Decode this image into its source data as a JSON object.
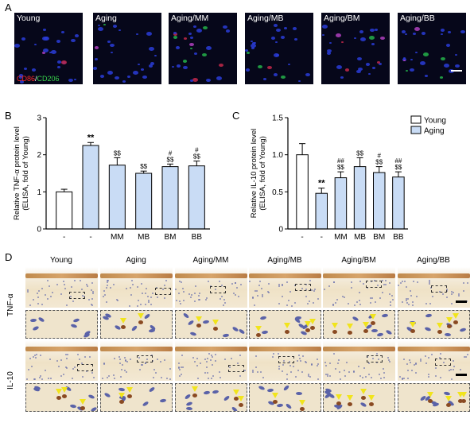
{
  "panel_letters": {
    "a": "A",
    "b": "B",
    "c": "C",
    "d": "D"
  },
  "panel_a": {
    "tiles": [
      "Young",
      "Aging",
      "Aging/MM",
      "Aging/MB",
      "Aging/BM",
      "Aging/BB"
    ],
    "legend_red": "CD86",
    "legend_sep": "/",
    "legend_green": "CD206"
  },
  "chart_data": [
    {
      "type": "bar",
      "ylabel": "Relative TNF-α protein level (ELISA, fold of Young)",
      "categories": [
        "-",
        "-",
        "MM",
        "MB",
        "BM",
        "BB"
      ],
      "values": [
        1.0,
        2.25,
        1.72,
        1.5,
        1.68,
        1.7
      ],
      "errors": [
        0.07,
        0.08,
        0.2,
        0.06,
        0.07,
        0.13
      ],
      "ylim": [
        0,
        3
      ],
      "yticks": [
        0,
        1,
        2,
        3
      ],
      "annotations": [
        [
          "",
          ""
        ],
        [
          "",
          "**"
        ],
        [
          "",
          "$$"
        ],
        [
          "",
          "$$"
        ],
        [
          "#",
          "$$"
        ],
        [
          "#",
          "$$"
        ]
      ],
      "bar_colors": [
        "#ffffff",
        "#c9dcf5",
        "#c9dcf5",
        "#c9dcf5",
        "#c9dcf5",
        "#c9dcf5"
      ]
    },
    {
      "type": "bar",
      "ylabel": "Relative IL-10 protein level (ELISA, fold of Young)",
      "categories": [
        "-",
        "-",
        "MM",
        "MB",
        "BM",
        "BB"
      ],
      "values": [
        1.0,
        0.48,
        0.69,
        0.84,
        0.76,
        0.7
      ],
      "errors": [
        0.15,
        0.07,
        0.08,
        0.12,
        0.08,
        0.07
      ],
      "ylim": [
        0,
        1.5
      ],
      "yticks": [
        "0",
        "0.5",
        "1.0",
        "1.5"
      ],
      "annotations": [
        [
          "",
          ""
        ],
        [
          "",
          "**"
        ],
        [
          "##",
          "$$"
        ],
        [
          "",
          "$$"
        ],
        [
          "#",
          "$$"
        ],
        [
          "##",
          "$$"
        ]
      ],
      "bar_colors": [
        "#ffffff",
        "#c9dcf5",
        "#c9dcf5",
        "#c9dcf5",
        "#c9dcf5",
        "#c9dcf5"
      ],
      "legend": [
        {
          "label": "Young",
          "color": "#ffffff"
        },
        {
          "label": "Aging",
          "color": "#c9dcf5"
        }
      ]
    }
  ],
  "panel_d": {
    "columns": [
      "Young",
      "Aging",
      "Aging/MM",
      "Aging/MB",
      "Aging/BM",
      "Aging/BB"
    ],
    "rows": [
      "TNF-α",
      "IL-10"
    ]
  }
}
